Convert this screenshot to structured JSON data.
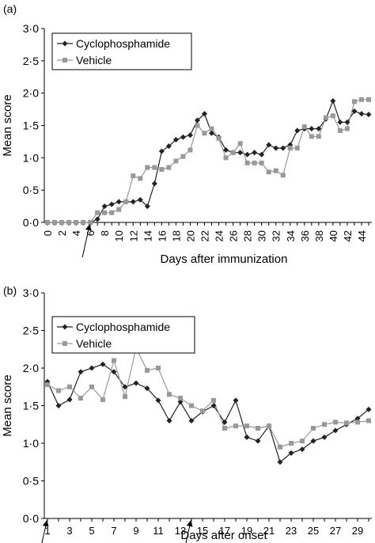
{
  "chart_data": [
    {
      "panel_label": "(a)",
      "type": "line",
      "xlabel": "Days after immunization",
      "ylabel": "Mean score",
      "ylim": [
        0,
        3
      ],
      "yticks": [
        "0·0",
        "0·5",
        "1·0",
        "1·5",
        "2·0",
        "2·5",
        "3·0"
      ],
      "xlim": [
        0,
        45
      ],
      "xticks": [
        "0",
        "2",
        "4",
        "6",
        "8",
        "10",
        "12",
        "14",
        "16",
        "18",
        "20",
        "22",
        "24",
        "26",
        "28",
        "30",
        "32",
        "34",
        "36",
        "38",
        "40",
        "42",
        "44"
      ],
      "legend_position": "top-left",
      "arrows_at_x": [
        6
      ],
      "series": [
        {
          "name": "Cyclophosphamide",
          "color": "#222222",
          "marker": "diamond",
          "x": [
            0,
            1,
            2,
            3,
            4,
            5,
            6,
            7,
            8,
            9,
            10,
            11,
            12,
            13,
            14,
            15,
            16,
            17,
            18,
            19,
            20,
            21,
            22,
            23,
            24,
            25,
            26,
            27,
            28,
            29,
            30,
            31,
            32,
            33,
            34,
            35,
            36,
            37,
            38,
            39,
            40,
            41,
            42,
            43,
            44,
            45
          ],
          "y": [
            0,
            0,
            0,
            0,
            0,
            0,
            0,
            0.05,
            0.25,
            0.28,
            0.32,
            0.32,
            0.32,
            0.35,
            0.25,
            0.6,
            1.1,
            1.18,
            1.28,
            1.32,
            1.35,
            1.58,
            1.68,
            1.38,
            1.32,
            1.12,
            1.08,
            1.08,
            1.05,
            1.08,
            1.05,
            1.2,
            1.15,
            1.15,
            1.2,
            1.42,
            1.45,
            1.45,
            1.45,
            1.6,
            1.88,
            1.55,
            1.55,
            1.72,
            1.68,
            1.67
          ]
        },
        {
          "name": "Vehicle",
          "color": "#999999",
          "marker": "square",
          "x": [
            0,
            1,
            2,
            3,
            4,
            5,
            6,
            7,
            8,
            9,
            10,
            11,
            12,
            13,
            14,
            15,
            16,
            17,
            18,
            19,
            20,
            21,
            22,
            23,
            24,
            25,
            26,
            27,
            28,
            29,
            30,
            31,
            32,
            33,
            34,
            35,
            36,
            37,
            38,
            39,
            40,
            41,
            42,
            43,
            44,
            45
          ],
          "y": [
            0,
            0,
            0,
            0,
            0,
            0,
            0,
            0.15,
            0.15,
            0.15,
            0.2,
            0.32,
            0.72,
            0.68,
            0.85,
            0.85,
            0.82,
            0.85,
            0.95,
            1.02,
            1.12,
            1.5,
            1.38,
            1.45,
            1.3,
            1.0,
            1.08,
            1.22,
            0.92,
            0.92,
            0.92,
            0.78,
            0.8,
            0.73,
            1.15,
            1.15,
            1.48,
            1.33,
            1.33,
            1.62,
            1.65,
            1.42,
            1.45,
            1.87,
            1.9,
            1.9
          ]
        }
      ]
    },
    {
      "panel_label": "(b)",
      "type": "line",
      "xlabel": "Days after onset",
      "ylabel": "Mean score",
      "ylim": [
        0,
        3
      ],
      "yticks": [
        "0·0",
        "0·5",
        "1·0",
        "1·5",
        "2·0",
        "2·5",
        "3·0"
      ],
      "xlim": [
        1,
        30
      ],
      "xticks": [
        "1",
        "3",
        "5",
        "7",
        "9",
        "11",
        "13",
        "15",
        "17",
        "19",
        "21",
        "23",
        "25",
        "27",
        "29"
      ],
      "legend_position": "top-left",
      "arrows_at_x": [
        1,
        14
      ],
      "series": [
        {
          "name": "Cyclophosphamide",
          "color": "#222222",
          "marker": "diamond",
          "x": [
            1,
            2,
            3,
            4,
            5,
            6,
            7,
            8,
            9,
            10,
            11,
            12,
            13,
            14,
            15,
            16,
            17,
            18,
            19,
            20,
            21,
            22,
            23,
            24,
            25,
            26,
            27,
            28,
            29,
            30
          ],
          "y": [
            1.82,
            1.5,
            1.58,
            1.95,
            2.0,
            2.05,
            1.95,
            1.75,
            1.8,
            1.73,
            1.57,
            1.3,
            1.55,
            1.3,
            1.42,
            1.5,
            1.28,
            1.57,
            1.08,
            1.03,
            1.23,
            0.75,
            0.87,
            0.92,
            1.03,
            1.08,
            1.17,
            1.25,
            1.33,
            1.45
          ]
        },
        {
          "name": "Vehicle",
          "color": "#999999",
          "marker": "square",
          "x": [
            1,
            2,
            3,
            4,
            5,
            6,
            7,
            8,
            9,
            10,
            11,
            12,
            13,
            14,
            15,
            16,
            17,
            18,
            19,
            20,
            21,
            22,
            23,
            24,
            25,
            26,
            27,
            28,
            29,
            30
          ],
          "y": [
            1.78,
            1.7,
            1.75,
            1.6,
            1.75,
            1.58,
            2.1,
            1.62,
            2.27,
            1.97,
            2.0,
            1.65,
            1.6,
            1.5,
            1.43,
            1.57,
            1.2,
            1.23,
            1.23,
            1.2,
            1.23,
            0.95,
            1.0,
            1.03,
            1.2,
            1.25,
            1.28,
            1.27,
            1.28,
            1.3
          ]
        }
      ]
    }
  ]
}
